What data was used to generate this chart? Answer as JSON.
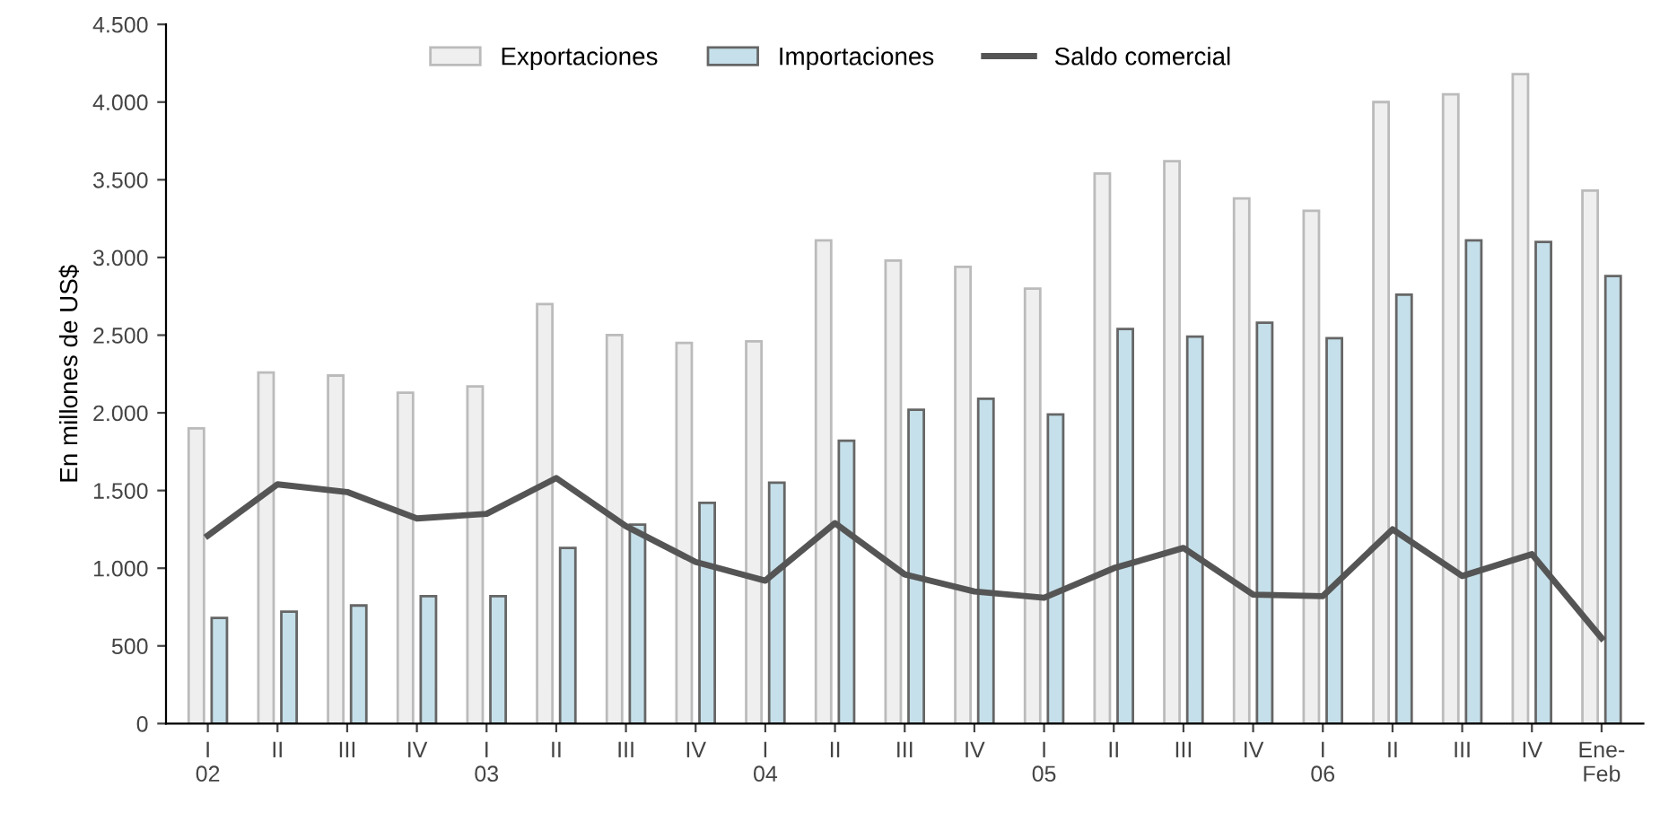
{
  "chart_data": {
    "type": "bar",
    "ylabel": "En millones de US$",
    "categories": [
      "I\n02",
      "II",
      "III",
      "IV",
      "I\n03",
      "II",
      "III",
      "IV",
      "I\n04",
      "II",
      "III",
      "IV",
      "I\n05",
      "II",
      "III",
      "IV",
      "I\n06",
      "II",
      "III",
      "IV",
      "Ene-\nFeb"
    ],
    "series": [
      {
        "name": "Exportaciones",
        "color": "#efefef",
        "values": [
          1900,
          2260,
          2240,
          2130,
          2170,
          2700,
          2500,
          2450,
          2460,
          3110,
          2980,
          2940,
          2800,
          3540,
          3620,
          3380,
          3300,
          4000,
          4050,
          4180,
          3430
        ]
      },
      {
        "name": "Importaciones",
        "color": "#c5e0ea",
        "values": [
          680,
          720,
          760,
          820,
          820,
          1130,
          1280,
          1420,
          1550,
          1820,
          2020,
          2090,
          1990,
          2540,
          2490,
          2580,
          2480,
          2760,
          3110,
          3100,
          2880
        ]
      },
      {
        "name": "Saldo comercial",
        "type": "line",
        "color": "#555555",
        "values": [
          1210,
          1540,
          1490,
          1320,
          1350,
          1580,
          1270,
          1040,
          920,
          1290,
          960,
          850,
          810,
          1000,
          1130,
          830,
          820,
          1250,
          950,
          1090,
          550
        ]
      }
    ],
    "ylim": [
      0,
      4500
    ],
    "yticks": [
      0,
      500,
      {
        "value": 1000,
        "label": "1.000"
      },
      {
        "value": 1500,
        "label": "1.500"
      },
      {
        "value": 2000,
        "label": "2.000"
      },
      {
        "value": 2500,
        "label": "2.500"
      },
      {
        "value": 3000,
        "label": "3.000"
      },
      {
        "value": 3500,
        "label": "3.500"
      },
      {
        "value": 4000,
        "label": "4.000"
      },
      {
        "value": 4500,
        "label": "4.500"
      }
    ],
    "grid": false,
    "legend": "top",
    "marker": "none",
    "line_style": "solid"
  }
}
